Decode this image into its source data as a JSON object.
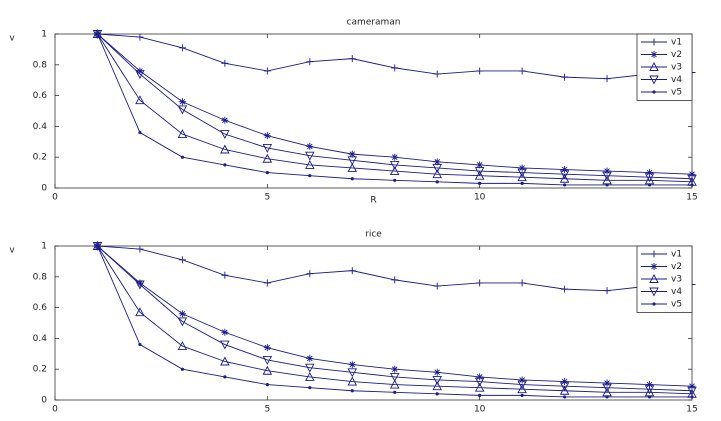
{
  "chart_data": [
    {
      "type": "line",
      "title": "cameraman",
      "y_label": "v",
      "x_label": "R",
      "x": [
        1,
        2,
        3,
        4,
        5,
        6,
        7,
        8,
        9,
        10,
        11,
        12,
        13,
        14,
        15
      ],
      "xlim": [
        0,
        15
      ],
      "xticks": [
        0,
        5,
        10,
        15
      ],
      "ylim": [
        0,
        1
      ],
      "yticks": [
        0,
        0.2,
        0.4,
        0.6,
        0.8,
        1
      ],
      "legend": "upper right",
      "series": [
        {
          "name": "v1",
          "color": "#1c1c8a",
          "marker": "plus",
          "values": [
            1,
            0.98,
            0.91,
            0.81,
            0.76,
            0.82,
            0.84,
            0.78,
            0.74,
            0.76,
            0.76,
            0.72,
            0.71,
            0.74,
            0.75
          ]
        },
        {
          "name": "v2",
          "color": "#1c1c8a",
          "marker": "star",
          "values": [
            1,
            0.76,
            0.56,
            0.44,
            0.34,
            0.27,
            0.22,
            0.2,
            0.17,
            0.15,
            0.13,
            0.12,
            0.11,
            0.1,
            0.09
          ]
        },
        {
          "name": "v3",
          "color": "#1c1c8a",
          "marker": "triangle-up",
          "values": [
            1,
            0.57,
            0.35,
            0.25,
            0.19,
            0.15,
            0.13,
            0.11,
            0.09,
            0.08,
            0.07,
            0.06,
            0.05,
            0.05,
            0.04
          ]
        },
        {
          "name": "v4",
          "color": "#1c1c8a",
          "marker": "triangle-down",
          "values": [
            1,
            0.74,
            0.51,
            0.35,
            0.26,
            0.21,
            0.18,
            0.15,
            0.13,
            0.11,
            0.1,
            0.09,
            0.08,
            0.07,
            0.06
          ]
        },
        {
          "name": "v5",
          "color": "#1c1c8a",
          "marker": "dot",
          "values": [
            1,
            0.36,
            0.2,
            0.15,
            0.1,
            0.08,
            0.06,
            0.05,
            0.04,
            0.03,
            0.03,
            0.02,
            0.02,
            0.02,
            0.02
          ]
        }
      ]
    },
    {
      "type": "line",
      "title": "rice",
      "y_label": "v",
      "x": [
        1,
        2,
        3,
        4,
        5,
        6,
        7,
        8,
        9,
        10,
        11,
        12,
        13,
        14,
        15
      ],
      "xlim": [
        0,
        15
      ],
      "xticks": [
        0,
        5,
        10,
        15
      ],
      "ylim": [
        0,
        1
      ],
      "yticks": [
        0,
        0.2,
        0.4,
        0.6,
        0.8,
        1
      ],
      "legend": "upper right",
      "series": [
        {
          "name": "v1",
          "color": "#1c1c8a",
          "marker": "plus",
          "values": [
            1,
            0.98,
            0.91,
            0.81,
            0.76,
            0.82,
            0.84,
            0.78,
            0.74,
            0.76,
            0.76,
            0.72,
            0.71,
            0.74,
            0.75
          ]
        },
        {
          "name": "v2",
          "color": "#1c1c8a",
          "marker": "star",
          "values": [
            1,
            0.76,
            0.56,
            0.44,
            0.34,
            0.27,
            0.23,
            0.2,
            0.18,
            0.15,
            0.13,
            0.12,
            0.11,
            0.1,
            0.09
          ]
        },
        {
          "name": "v3",
          "color": "#1c1c8a",
          "marker": "triangle-up",
          "values": [
            1,
            0.57,
            0.35,
            0.25,
            0.19,
            0.15,
            0.12,
            0.1,
            0.09,
            0.08,
            0.07,
            0.06,
            0.05,
            0.05,
            0.04
          ]
        },
        {
          "name": "v4",
          "color": "#1c1c8a",
          "marker": "triangle-down",
          "values": [
            1,
            0.75,
            0.51,
            0.36,
            0.26,
            0.21,
            0.18,
            0.15,
            0.13,
            0.12,
            0.1,
            0.09,
            0.08,
            0.07,
            0.06
          ]
        },
        {
          "name": "v5",
          "color": "#1c1c8a",
          "marker": "dot",
          "values": [
            1,
            0.36,
            0.2,
            0.15,
            0.1,
            0.08,
            0.06,
            0.05,
            0.04,
            0.03,
            0.03,
            0.02,
            0.02,
            0.02,
            0.02
          ]
        }
      ]
    }
  ]
}
